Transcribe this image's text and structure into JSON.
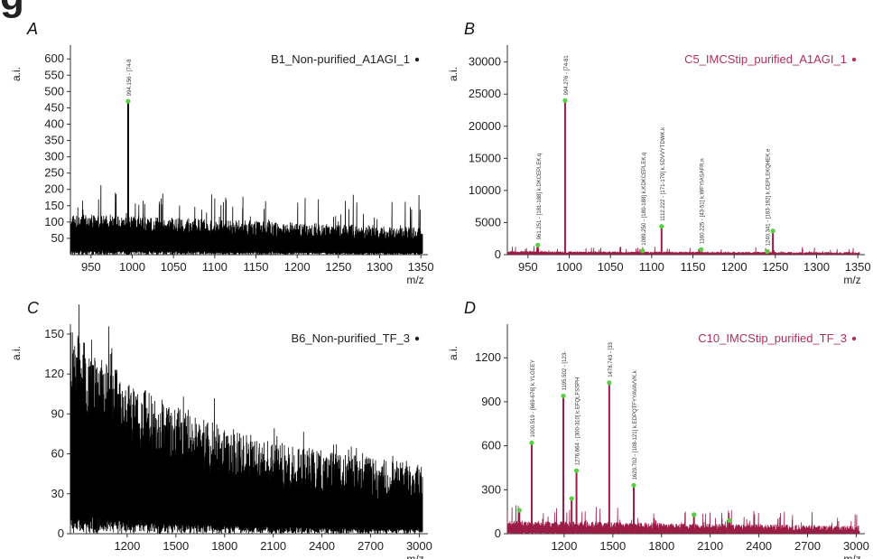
{
  "figure_heading": "g",
  "chart_data": [
    {
      "panel": "A",
      "type": "line",
      "title": "B1_Non-purified_A1AGI_1",
      "title_color": "#222222",
      "color": "#000000",
      "ylabel": "a.i.",
      "xlabel": "m/z",
      "xlim": [
        925,
        1352
      ],
      "ylim": [
        0,
        620
      ],
      "xticks": [
        950,
        1000,
        1050,
        1100,
        1150,
        1200,
        1250,
        1300,
        1350
      ],
      "yticks": [
        50,
        100,
        150,
        200,
        250,
        300,
        350,
        400,
        450,
        500,
        550,
        600
      ],
      "noise": {
        "start": 80,
        "end": 40,
        "amp": 45,
        "spike": 100
      },
      "peaks": [
        {
          "x": 995,
          "y": 470,
          "label": "994.156 - [74-8"
        }
      ]
    },
    {
      "panel": "B",
      "type": "line",
      "title": "C5_IMCStip_purified_A1AGI_1",
      "title_color": "#b0305a",
      "color": "#9b1d46",
      "ylabel": "a.i.",
      "xlabel": "m/z",
      "xlim": [
        925,
        1352
      ],
      "ylim": [
        0,
        31500
      ],
      "xticks": [
        950,
        1000,
        1050,
        1100,
        1150,
        1200,
        1250,
        1300,
        1350
      ],
      "yticks": [
        0,
        5000,
        10000,
        15000,
        20000,
        25000,
        30000
      ],
      "noise": {
        "start": 300,
        "end": 150,
        "amp": 250,
        "spike": 900
      },
      "peaks": [
        {
          "x": 962,
          "y": 1500,
          "label": "961.251 - [181-188] k.DKCEPLEK.q"
        },
        {
          "x": 995,
          "y": 24000,
          "label": "994.276 - [74-81"
        },
        {
          "x": 1089,
          "y": 600,
          "label": "1089.250 - [180-188] k.KDKCEPLEK.q"
        },
        {
          "x": 1112,
          "y": 4400,
          "label": "1112.222 - [171-179] k.SDVVYTDWK.k"
        },
        {
          "x": 1160,
          "y": 800,
          "label": "1160.225 - [43-51] k.WFYIASAFR.n"
        },
        {
          "x": 1240,
          "y": 500,
          "label": "1240.341 - [183-192] k.CEPLEKQHEK.e"
        },
        {
          "x": 1247,
          "y": 3700,
          "label": ""
        }
      ]
    },
    {
      "panel": "C",
      "type": "line",
      "title": "B6_Non-purified_TF_3",
      "title_color": "#222222",
      "color": "#000000",
      "ylabel": "a.i.",
      "xlabel": "m/z",
      "xlim": [
        850,
        3020
      ],
      "ylim": [
        0,
        152
      ],
      "xticks": [
        1200,
        1500,
        1800,
        2100,
        2400,
        2700,
        3000
      ],
      "yticks": [
        0,
        30,
        60,
        90,
        120,
        150
      ],
      "noise": {
        "start": 95,
        "end": 18,
        "amp": 40,
        "spike": 50,
        "decay": true
      },
      "peaks": []
    },
    {
      "panel": "D",
      "type": "line",
      "title": "C10_IMCStip_purified_TF_3",
      "title_color": "#b0305a",
      "color": "#9b1d46",
      "ylabel": "a.i.",
      "xlabel": "m/z",
      "xlim": [
        850,
        3020
      ],
      "ylim": [
        0,
        1380
      ],
      "xticks": [
        1200,
        1500,
        1800,
        2100,
        2400,
        2700,
        3000
      ],
      "yticks": [
        0,
        300,
        600,
        900,
        1200
      ],
      "noise": {
        "start": 50,
        "end": 15,
        "amp": 40,
        "spike": 120
      },
      "peaks": [
        {
          "x": 924,
          "y": 160,
          "label": ""
        },
        {
          "x": 1000,
          "y": 620,
          "label": "1000.519 - [669-676] k.YLGEEY"
        },
        {
          "x": 1195,
          "y": 940,
          "label": "1195.502 - [123-"
        },
        {
          "x": 1246,
          "y": 240,
          "label": ""
        },
        {
          "x": 1276,
          "y": 430,
          "label": "1276.664 - [300-310] k.EFQLFSSPH"
        },
        {
          "x": 1478,
          "y": 1030,
          "label": "1478.743 - [33"
        },
        {
          "x": 1629,
          "y": 330,
          "label": "1629.702 - [108-121] k.EDPQTFYYAVAVVK.k"
        },
        {
          "x": 2000,
          "y": 130,
          "label": ""
        },
        {
          "x": 2220,
          "y": 90,
          "label": ""
        }
      ]
    }
  ]
}
